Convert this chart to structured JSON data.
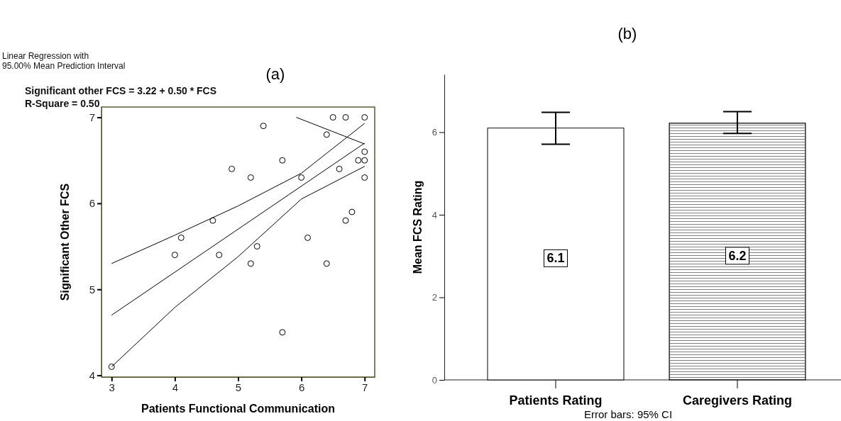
{
  "chart_data": [
    {
      "type": "scatter",
      "title": "(a)",
      "xlabel": "Patients Functional Communication",
      "ylabel": "Significant Other FCS",
      "xlim": [
        2.84,
        7.16
      ],
      "ylim": [
        3.98,
        7.12
      ],
      "xticks": [
        3,
        4,
        5,
        6,
        7
      ],
      "yticks": [
        4,
        5,
        6,
        7
      ],
      "grid": false,
      "series": [
        {
          "type": "scatter",
          "marker": "circle",
          "color": "#000000",
          "x": [
            3,
            4,
            4.1,
            4.6,
            4.7,
            4.9,
            5.2,
            5.2,
            5.3,
            5.4,
            5.7,
            5.7,
            6,
            6.1,
            6.4,
            6.4,
            6.5,
            6.6,
            6.7,
            6.7,
            6.8,
            6.9,
            7,
            7,
            7,
            7
          ],
          "values": [
            4.1,
            5.4,
            5.6,
            5.8,
            5.4,
            6.4,
            6.3,
            5.3,
            5.5,
            6.9,
            6.5,
            4.5,
            6.3,
            5.6,
            5.3,
            6.8,
            7,
            6.4,
            7,
            5.8,
            5.9,
            6.5,
            7,
            6.6,
            6.5,
            6.3
          ]
        },
        {
          "type": "line",
          "color": "#000000",
          "x": [
            3,
            7
          ],
          "values": [
            4.7,
            6.7
          ]
        },
        {
          "type": "line",
          "color": "#000000",
          "x": [
            3,
            4,
            5,
            6,
            7
          ],
          "values": [
            5.3,
            5.63,
            5.97,
            6.35,
            6.93
          ]
        },
        {
          "type": "line",
          "color": "#000000",
          "x": [
            3,
            4,
            5,
            6,
            7
          ],
          "values": [
            4.1,
            4.79,
            5.38,
            6.05,
            6.43
          ]
        },
        {
          "type": "line",
          "color": "#000000",
          "x": [
            5.92,
            7
          ],
          "values": [
            7,
            6.69
          ]
        }
      ],
      "annotations": [
        "Linear Regression with\n95.00% Mean Prediction Interval",
        "Significant other FCS = 3.22 + 0.50 * FCS",
        "R-Square = 0.50"
      ]
    },
    {
      "type": "bar",
      "title": "(b)",
      "ylabel": "Mean FCS Rating",
      "categories": [
        "Patients Rating",
        "Caregivers Rating"
      ],
      "values": [
        6.1,
        6.22
      ],
      "colors": [
        "#ffffff",
        "#808080"
      ],
      "errors": [
        [
          5.71,
          6.48
        ],
        [
          5.97,
          6.5
        ]
      ],
      "value_labels": [
        "6.1",
        "6.2"
      ],
      "ylim": [
        0,
        7.4
      ],
      "yticks": [
        0,
        2,
        4,
        6
      ],
      "grid": false,
      "annotations": [
        "Error bars: 95% CI"
      ]
    }
  ]
}
